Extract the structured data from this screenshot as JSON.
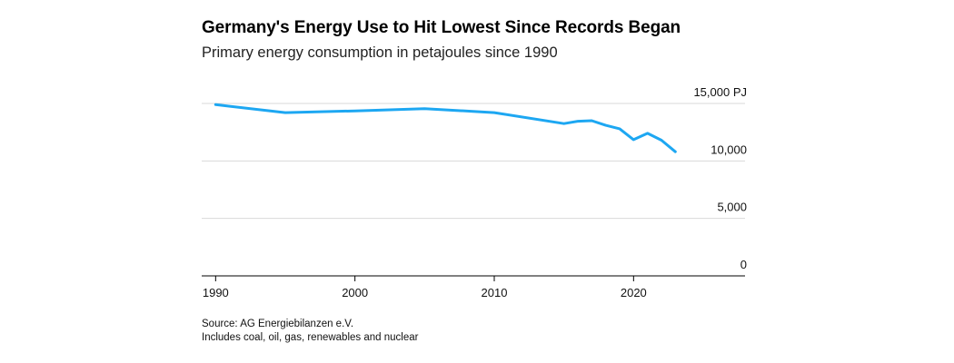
{
  "title": "Germany's Energy Use to Hit Lowest Since Records Began",
  "subtitle": "Primary energy consumption in petajoules since 1990",
  "footnotes": {
    "source": "Source: AG Energiebilanzen e.V.",
    "note": "Includes coal, oil, gas, renewables and nuclear"
  },
  "colors": {
    "line": "#1da7f2",
    "grid": "#d9d9d9",
    "axis": "#000000"
  },
  "chart_data": {
    "type": "line",
    "title": "Germany's Energy Use to Hit Lowest Since Records Began",
    "subtitle": "Primary energy consumption in petajoules since 1990",
    "xlabel": "",
    "ylabel": "",
    "xlim": [
      1989,
      2028
    ],
    "ylim": [
      0,
      15000
    ],
    "x_ticks": [
      1990,
      2000,
      2010,
      2020
    ],
    "x_tick_labels": [
      "1990",
      "2000",
      "2010",
      "2020"
    ],
    "y_ticks": [
      0,
      5000,
      10000,
      15000
    ],
    "y_tick_labels": [
      "0",
      "5,000",
      "10,000",
      "15,000 PJ"
    ],
    "y_axis_side": "right",
    "grid": true,
    "legend": "none",
    "series": [
      {
        "x": [
          1990,
          1995,
          2000,
          2005,
          2010,
          2015,
          2016,
          2017,
          2018,
          2019,
          2020,
          2021,
          2022,
          2023
        ],
        "y": [
          14900,
          14200,
          14350,
          14550,
          14200,
          13250,
          13450,
          13500,
          13100,
          12800,
          11850,
          12400,
          11800,
          10800
        ]
      }
    ]
  }
}
